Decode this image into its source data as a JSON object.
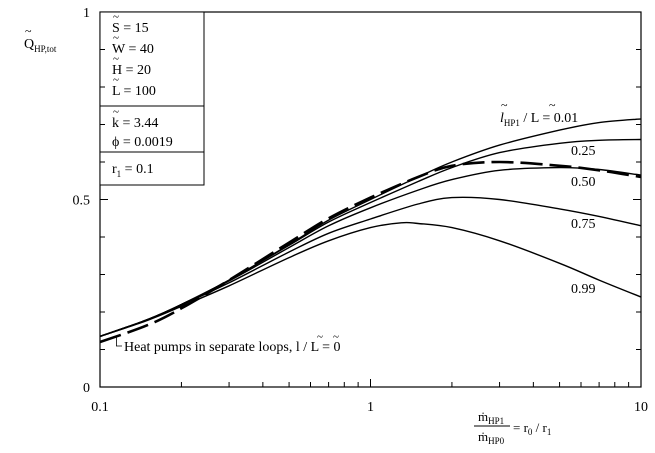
{
  "chart_data": {
    "type": "line",
    "x_scale": "log",
    "xlim": [
      0.1,
      10
    ],
    "ylim": [
      0,
      1
    ],
    "grid": false,
    "x_ticks": [
      {
        "value": 0.1,
        "label": "0.1"
      },
      {
        "value": 1,
        "label": "1"
      },
      {
        "value": 10,
        "label": "10"
      }
    ],
    "y_ticks": [
      {
        "value": 0,
        "label": "0"
      },
      {
        "value": 0.5,
        "label": "0.5"
      },
      {
        "value": 1,
        "label": "1"
      }
    ],
    "ylabel": {
      "main": "Q",
      "sub": "HP,tot"
    },
    "xlabel": {
      "numerator": {
        "main": "ṁ",
        "sub": "HP1"
      },
      "denominator": {
        "main": "ṁ",
        "sub": "HP0"
      },
      "rhs_a": "= r",
      "rhs_a_sub": "0",
      "rhs_b": " / r",
      "rhs_b_sub": "1"
    },
    "parameters": {
      "group1": [
        "S = 15",
        "W = 40",
        "H = 20",
        "L = 100"
      ],
      "group2": [
        "k = 3.44",
        "ϕ = 0.0019"
      ],
      "group3": {
        "main": "r",
        "sub": "1",
        "rest": " = 0.1"
      }
    },
    "legend_title": {
      "a": "l",
      "a_sub": "HP1",
      "b": " / L = 0.01"
    },
    "series": [
      {
        "label": "",
        "style": "solid",
        "x": [
          0.1,
          0.15,
          0.2,
          0.3,
          0.5,
          0.7,
          1,
          1.5,
          2,
          3,
          5,
          7,
          10
        ],
        "y": [
          0.135,
          0.18,
          0.22,
          0.285,
          0.38,
          0.445,
          0.5,
          0.56,
          0.6,
          0.645,
          0.685,
          0.705,
          0.715
        ]
      },
      {
        "label": "0.25",
        "style": "solid",
        "x": [
          0.1,
          0.15,
          0.2,
          0.3,
          0.5,
          0.7,
          1,
          1.5,
          2,
          3,
          5,
          7,
          10
        ],
        "y": [
          0.135,
          0.18,
          0.22,
          0.285,
          0.378,
          0.44,
          0.492,
          0.548,
          0.585,
          0.625,
          0.65,
          0.658,
          0.66
        ]
      },
      {
        "label": "0.50",
        "style": "solid",
        "x": [
          0.1,
          0.15,
          0.2,
          0.3,
          0.5,
          0.7,
          1,
          1.5,
          2,
          3,
          5,
          7,
          10
        ],
        "y": [
          0.135,
          0.18,
          0.22,
          0.283,
          0.372,
          0.43,
          0.478,
          0.525,
          0.553,
          0.578,
          0.585,
          0.58,
          0.565
        ]
      },
      {
        "label": "0.75",
        "style": "solid",
        "x": [
          0.1,
          0.15,
          0.2,
          0.3,
          0.5,
          0.7,
          1,
          1.5,
          2,
          3,
          5,
          7,
          10
        ],
        "y": [
          0.135,
          0.179,
          0.218,
          0.278,
          0.36,
          0.41,
          0.448,
          0.488,
          0.505,
          0.5,
          0.475,
          0.455,
          0.43
        ]
      },
      {
        "label": "0.99",
        "style": "solid",
        "x": [
          0.1,
          0.15,
          0.2,
          0.3,
          0.5,
          0.7,
          1,
          1.3,
          1.5,
          2,
          3,
          5,
          7,
          10
        ],
        "y": [
          0.135,
          0.178,
          0.215,
          0.27,
          0.345,
          0.39,
          0.425,
          0.438,
          0.436,
          0.425,
          0.39,
          0.33,
          0.285,
          0.24
        ]
      },
      {
        "label": "Heat pumps in separate loops, l / L = 0",
        "style": "dashed",
        "x": [
          0.1,
          0.15,
          0.2,
          0.3,
          0.5,
          0.7,
          1,
          1.5,
          2,
          3,
          5,
          7,
          10
        ],
        "y": [
          0.12,
          0.165,
          0.21,
          0.285,
          0.385,
          0.45,
          0.505,
          0.56,
          0.59,
          0.6,
          0.59,
          0.578,
          0.56
        ]
      }
    ]
  }
}
